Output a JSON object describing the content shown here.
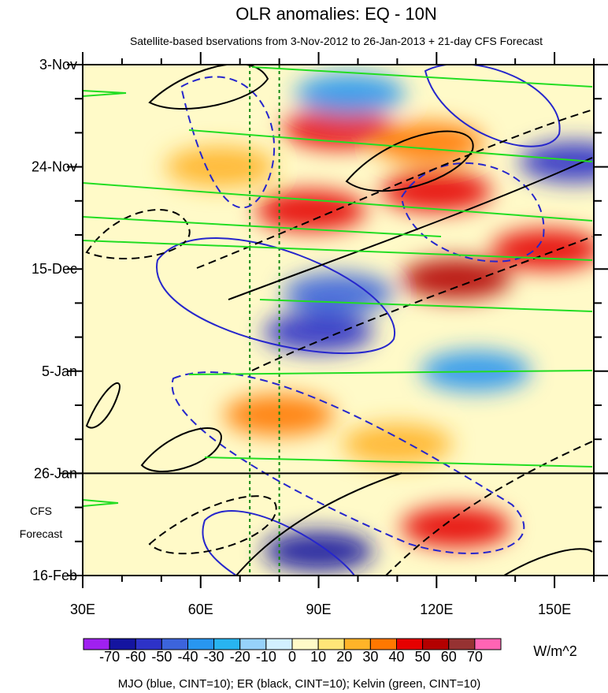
{
  "chart_data": {
    "type": "heatmap",
    "title": "OLR anomalies: EQ - 10N",
    "subtitle": "Satellite-based bservations from 3-Nov-2012 to 26-Jan-2013 + 21-day CFS Forecast",
    "x_range": [
      30,
      160
    ],
    "x_ticks": [
      {
        "value": 30,
        "label": "30E"
      },
      {
        "value": 60,
        "label": "60E"
      },
      {
        "value": 90,
        "label": "90E"
      },
      {
        "value": 120,
        "label": "120E"
      },
      {
        "value": 150,
        "label": "150E"
      }
    ],
    "y_range_days": [
      0,
      105
    ],
    "y_ticks": [
      {
        "day": 0,
        "label": "3-Nov"
      },
      {
        "day": 21,
        "label": "24-Nov"
      },
      {
        "day": 42,
        "label": "15-Dec"
      },
      {
        "day": 63,
        "label": "5-Jan"
      },
      {
        "day": 84,
        "label": "26-Jan"
      },
      {
        "day": 105,
        "label": "16-Feb"
      }
    ],
    "forecast_start_day": 84,
    "forecast_label_line1": "CFS",
    "forecast_label_line2": "Forecast",
    "reference_lines_lon": [
      72.5,
      80
    ],
    "colorbar": {
      "unit": "W/m^2",
      "levels": [
        -70,
        -60,
        -50,
        -40,
        -30,
        -20,
        -10,
        0,
        10,
        20,
        30,
        40,
        50,
        60,
        70
      ],
      "colors": [
        "#a020f0",
        "#1414a0",
        "#2d32c8",
        "#3c64dc",
        "#2896f0",
        "#28b4f0",
        "#96d2fa",
        "#d2f0ff",
        "#fffac8",
        "#ffe678",
        "#ffb428",
        "#ff7800",
        "#e60000",
        "#b40000",
        "#963232",
        "#ff64b4"
      ]
    },
    "anomalies": [
      {
        "day": 13,
        "lon": 95,
        "value": 45
      },
      {
        "day": 16,
        "lon": 118,
        "value": 30
      },
      {
        "day": 21,
        "lon": 65,
        "value": 20
      },
      {
        "day": 26,
        "lon": 120,
        "value": 40
      },
      {
        "day": 30,
        "lon": 88,
        "value": 40
      },
      {
        "day": 38,
        "lon": 148,
        "value": 40
      },
      {
        "day": 44,
        "lon": 125,
        "value": 50
      },
      {
        "day": 6,
        "lon": 98,
        "value": -40
      },
      {
        "day": 47,
        "lon": 95,
        "value": -50
      },
      {
        "day": 55,
        "lon": 90,
        "value": -60
      },
      {
        "day": 63,
        "lon": 130,
        "value": -40
      },
      {
        "day": 72,
        "lon": 80,
        "value": 30
      },
      {
        "day": 78,
        "lon": 110,
        "value": 20
      },
      {
        "day": 95,
        "lon": 125,
        "value": 40
      },
      {
        "day": 100,
        "lon": 90,
        "value": -70
      },
      {
        "day": 20,
        "lon": 155,
        "value": -60
      }
    ],
    "legend_note": "MJO (blue, CINT=10); ER (black, CINT=10); Kelvin (green, CINT=10)",
    "series": [
      {
        "name": "MJO",
        "color": "#2626cc",
        "contour_interval": 10
      },
      {
        "name": "ER",
        "color": "#000000",
        "contour_interval": 10
      },
      {
        "name": "Kelvin",
        "color": "#22dd22",
        "contour_interval": 10
      }
    ]
  }
}
